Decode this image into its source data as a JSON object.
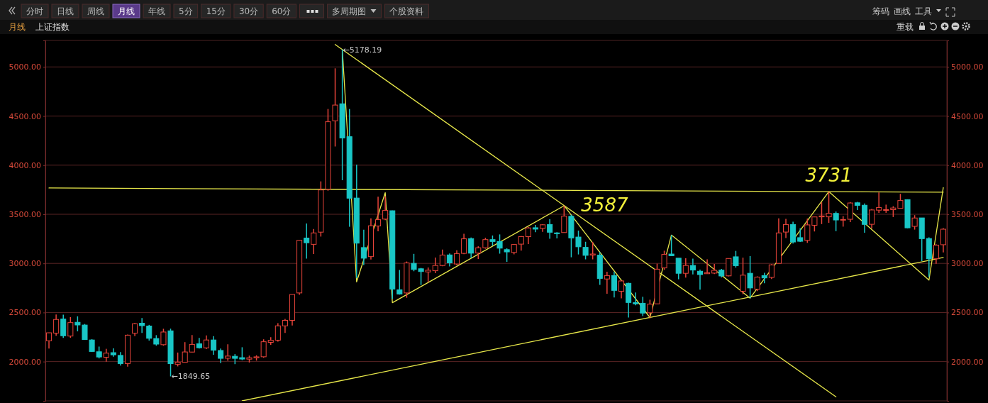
{
  "chart_data": {
    "type": "candlestick",
    "title": "上证指数",
    "subtitle": "月线",
    "annotations": [
      "分时",
      "日线",
      "周线",
      "月线",
      "年线",
      "5分",
      "15分",
      "30分",
      "60分",
      "多周期图",
      "个股资料",
      "筹码",
      "画线",
      "工具",
      "重载",
      "←5178.19",
      "←1849.65",
      "3587",
      "3731"
    ],
    "categories": [
      null,
      null,
      null,
      null,
      null,
      null,
      null,
      null,
      null,
      null,
      null,
      null,
      null,
      null,
      null,
      null,
      null,
      null,
      null,
      null,
      null,
      null,
      null,
      null,
      null,
      null,
      null,
      null,
      null,
      null,
      null,
      null,
      null,
      null,
      null,
      null,
      null,
      null,
      null,
      null,
      null,
      null,
      null,
      null,
      null,
      null,
      null,
      null,
      null,
      null,
      null,
      null,
      null,
      null,
      null,
      null,
      null,
      null,
      null,
      null,
      null,
      null,
      null,
      null,
      null,
      null,
      null,
      null,
      null,
      null,
      null,
      null,
      null,
      null,
      null,
      null,
      null,
      null,
      null,
      null,
      null,
      null,
      null,
      null,
      null,
      null,
      null,
      null,
      null,
      null,
      null,
      null,
      null,
      null,
      null,
      null,
      null,
      null,
      null,
      null,
      null,
      null,
      null,
      null,
      null,
      null,
      null,
      null,
      null,
      null,
      null,
      null,
      null,
      null,
      null,
      null,
      null,
      null,
      null,
      null,
      null,
      null,
      null,
      null,
      null,
      null
    ],
    "ohlc": [
      [
        2212,
        2296,
        2132,
        2293
      ],
      [
        2290,
        2479,
        2262,
        2429
      ],
      [
        2433,
        2478,
        2242,
        2263
      ],
      [
        2260,
        2453,
        2242,
        2397
      ],
      [
        2400,
        2461,
        2308,
        2373
      ],
      [
        2372,
        2383,
        2223,
        2225
      ],
      [
        2220,
        2228,
        2098,
        2103
      ],
      [
        2100,
        2153,
        2032,
        2047
      ],
      [
        2044,
        2130,
        1999,
        2086
      ],
      [
        2091,
        2135,
        2050,
        2069
      ],
      [
        2063,
        2097,
        1959,
        1980
      ],
      [
        1980,
        2276,
        1949,
        2269
      ],
      [
        2289,
        2393,
        2259,
        2385
      ],
      [
        2391,
        2444,
        2291,
        2366
      ],
      [
        2362,
        2374,
        2214,
        2237
      ],
      [
        2235,
        2269,
        2162,
        2178
      ],
      [
        2172,
        2334,
        2162,
        2301
      ],
      [
        2313,
        2335,
        1849.65,
        1979
      ],
      [
        1973,
        2092,
        1951,
        1994
      ],
      [
        1993,
        2198,
        1993,
        2098
      ],
      [
        2097,
        2270,
        2095,
        2175
      ],
      [
        2181,
        2242,
        2132,
        2141
      ],
      [
        2140,
        2267,
        2128,
        2220
      ],
      [
        2220,
        2260,
        2069,
        2116
      ],
      [
        2113,
        2132,
        1985,
        2033
      ],
      [
        2034,
        2177,
        2008,
        2056
      ],
      [
        2054,
        2076,
        1974,
        2033
      ],
      [
        2040,
        2146,
        2014,
        2026
      ],
      [
        2025,
        2061,
        1991,
        2039
      ],
      [
        2039,
        2064,
        2010,
        2048
      ],
      [
        2049,
        2227,
        2039,
        2202
      ],
      [
        2196,
        2248,
        2170,
        2217
      ],
      [
        2218,
        2391,
        2203,
        2364
      ],
      [
        2364,
        2434,
        2292,
        2420
      ],
      [
        2420,
        2684,
        2367,
        2683
      ],
      [
        2699,
        3239,
        2680,
        3235
      ],
      [
        3258,
        3406,
        3049,
        3210
      ],
      [
        3194,
        3350,
        3095,
        3310
      ],
      [
        3318,
        3835,
        3273,
        3748
      ],
      [
        3755,
        4572,
        3740,
        4442
      ],
      [
        4452,
        4986,
        4190,
        4612
      ],
      [
        4625,
        5178.19,
        3847,
        4277
      ],
      [
        4290,
        4572,
        3373,
        3664
      ],
      [
        3665,
        4006,
        2850,
        3206
      ],
      [
        3161,
        3342,
        2983,
        3053
      ],
      [
        3069,
        3459,
        3039,
        3383
      ],
      [
        3381,
        3678,
        3327,
        3445
      ],
      [
        3451,
        3684,
        3440,
        3539
      ],
      [
        3536,
        3538,
        2638,
        2738
      ],
      [
        2731,
        2933,
        2682,
        2688
      ],
      [
        2699,
        3019,
        2650,
        3004
      ],
      [
        3000,
        3097,
        2920,
        2938
      ],
      [
        2945,
        2954,
        2780,
        2917
      ],
      [
        2913,
        2958,
        2807,
        2930
      ],
      [
        2925,
        3059,
        2900,
        2979
      ],
      [
        2978,
        3140,
        2971,
        3085
      ],
      [
        3086,
        3101,
        2969,
        3005
      ],
      [
        2994,
        3133,
        2980,
        3100
      ],
      [
        3102,
        3301,
        3093,
        3250
      ],
      [
        3252,
        3264,
        3056,
        3104
      ],
      [
        3105,
        3174,
        3044,
        3159
      ],
      [
        3159,
        3261,
        3149,
        3242
      ],
      [
        3242,
        3284,
        3180,
        3223
      ],
      [
        3222,
        3295,
        3099,
        3155
      ],
      [
        3140,
        3154,
        3016,
        3117
      ],
      [
        3111,
        3197,
        3092,
        3192
      ],
      [
        3196,
        3277,
        3130,
        3273
      ],
      [
        3272,
        3372,
        3197,
        3361
      ],
      [
        3363,
        3391,
        3317,
        3349
      ],
      [
        3356,
        3399,
        3322,
        3393
      ],
      [
        3396,
        3450,
        3251,
        3317
      ],
      [
        3310,
        3317,
        3254,
        3307
      ],
      [
        3314,
        3587,
        3314,
        3481
      ],
      [
        3479,
        3495,
        3062,
        3259
      ],
      [
        3268,
        3334,
        3091,
        3169
      ],
      [
        3163,
        3220,
        3041,
        3082
      ],
      [
        3085,
        3219,
        3041,
        3095
      ],
      [
        3084,
        3113,
        2782,
        2847
      ],
      [
        2841,
        2915,
        2691,
        2876
      ],
      [
        2875,
        2915,
        2653,
        2725
      ],
      [
        2716,
        2827,
        2644,
        2821
      ],
      [
        2797,
        2803,
        2449,
        2602
      ],
      [
        2600,
        2703,
        2573,
        2588
      ],
      [
        2594,
        2660,
        2464,
        2494
      ],
      [
        2497,
        2630,
        2441,
        2585
      ],
      [
        2588,
        2997,
        2588,
        2941
      ],
      [
        2954,
        3129,
        2934,
        3091
      ],
      [
        3095,
        3288,
        3075,
        3078
      ],
      [
        3053,
        3053,
        2838,
        2899
      ],
      [
        2899,
        3052,
        2855,
        2979
      ],
      [
        2979,
        3049,
        2888,
        2932
      ],
      [
        2920,
        2936,
        2733,
        2886
      ],
      [
        2895,
        3042,
        2894,
        2905
      ],
      [
        2901,
        2994,
        2891,
        2929
      ],
      [
        2931,
        2943,
        2857,
        2872
      ],
      [
        2873,
        3052,
        2868,
        3050
      ],
      [
        3067,
        3127,
        2957,
        2977
      ],
      [
        2716,
        3058,
        2686,
        2880
      ],
      [
        2899,
        3074,
        2646,
        2750
      ],
      [
        2737,
        2868,
        2718,
        2860
      ],
      [
        2876,
        2904,
        2797,
        2852
      ],
      [
        2857,
        2992,
        2840,
        2985
      ],
      [
        3000,
        3458,
        3000,
        3310
      ],
      [
        3319,
        3453,
        3258,
        3396
      ],
      [
        3396,
        3425,
        3202,
        3218
      ],
      [
        3262,
        3358,
        3218,
        3225
      ],
      [
        3234,
        3456,
        3209,
        3392
      ],
      [
        3388,
        3474,
        3325,
        3473
      ],
      [
        3474,
        3622,
        3400,
        3483
      ],
      [
        3474,
        3731,
        3413,
        3509
      ],
      [
        3509,
        3528,
        3328,
        3442
      ],
      [
        3442,
        3481,
        3374,
        3447
      ],
      [
        3449,
        3625,
        3420,
        3615
      ],
      [
        3617,
        3626,
        3543,
        3591
      ],
      [
        3592,
        3611,
        3312,
        3397
      ],
      [
        3398,
        3555,
        3355,
        3544
      ],
      [
        3542,
        3723,
        3514,
        3568
      ],
      [
        3544,
        3598,
        3515,
        3547
      ],
      [
        3547,
        3582,
        3472,
        3564
      ],
      [
        3561,
        3708,
        3561,
        3640
      ],
      [
        3649,
        3652,
        3357,
        3362
      ],
      [
        3377,
        3491,
        3344,
        3462
      ],
      [
        3463,
        3464,
        3023,
        3252
      ],
      [
        3253,
        3265,
        2863,
        3047
      ],
      [
        3047,
        3195,
        2997,
        3186
      ],
      [
        3190,
        3360,
        3112,
        3348
      ]
    ],
    "series": [
      {
        "type": "line",
        "color": "#e8e84a",
        "values": [
          3768,
          null,
          null,
          null,
          null,
          null,
          null,
          null,
          null,
          null,
          null,
          null,
          null,
          null,
          null,
          null,
          null,
          null,
          null,
          null,
          null,
          null,
          null,
          null,
          null,
          null,
          null,
          null,
          null,
          null,
          null,
          null,
          null,
          null,
          null,
          null,
          null,
          null,
          null,
          null,
          null,
          null,
          null,
          null,
          null,
          null,
          null,
          null,
          null,
          null,
          null,
          null,
          null,
          null,
          null,
          null,
          null,
          null,
          null,
          null,
          null,
          null,
          null,
          null,
          null,
          null,
          null,
          null,
          null,
          null,
          null,
          null,
          null,
          null,
          null,
          null,
          null,
          null,
          null,
          null,
          null,
          null,
          null,
          null,
          null,
          null,
          null,
          null,
          null,
          null,
          null,
          null,
          null,
          null,
          null,
          null,
          null,
          null,
          null,
          null,
          null,
          null,
          null,
          null,
          null,
          null,
          null,
          null,
          null,
          null,
          null,
          null,
          null,
          null,
          null,
          null,
          null,
          null,
          null,
          null,
          null,
          null,
          null,
          null,
          null,
          3725
        ]
      },
      {
        "type": "line",
        "color": "#e8e84a",
        "values": [
          null,
          null,
          null,
          null,
          null,
          null,
          null,
          null,
          null,
          null,
          null,
          null,
          null,
          null,
          null,
          null,
          null,
          null,
          null,
          null,
          null,
          null,
          null,
          null,
          null,
          null,
          null,
          1600,
          null,
          null,
          null,
          null,
          null,
          null,
          null,
          null,
          null,
          null,
          null,
          null,
          null,
          null,
          null,
          null,
          null,
          null,
          null,
          null,
          null,
          null,
          null,
          null,
          null,
          null,
          null,
          null,
          null,
          null,
          null,
          null,
          null,
          null,
          null,
          null,
          null,
          null,
          null,
          null,
          null,
          null,
          null,
          null,
          null,
          null,
          null,
          null,
          null,
          null,
          null,
          null,
          null,
          null,
          null,
          null,
          null,
          null,
          null,
          null,
          null,
          null,
          null,
          null,
          null,
          null,
          null,
          null,
          null,
          null,
          null,
          null,
          null,
          null,
          null,
          null,
          null,
          null,
          null,
          null,
          null,
          null,
          null,
          null,
          null,
          null,
          null,
          null,
          null,
          null,
          null,
          null,
          null,
          null,
          null,
          null,
          null,
          3060
        ]
      },
      {
        "type": "line",
        "color": "#e8e84a",
        "values": [
          null,
          null,
          null,
          null,
          null,
          null,
          null,
          null,
          null,
          null,
          null,
          null,
          null,
          null,
          null,
          null,
          null,
          null,
          null,
          null,
          null,
          null,
          null,
          null,
          null,
          null,
          null,
          null,
          null,
          null,
          null,
          null,
          null,
          null,
          null,
          null,
          null,
          null,
          null,
          null,
          5229,
          null,
          null,
          null,
          null,
          null,
          null,
          null,
          null,
          null,
          null,
          null,
          null,
          null,
          null,
          null,
          null,
          null,
          null,
          null,
          null,
          null,
          null,
          null,
          null,
          null,
          null,
          null,
          null,
          null,
          null,
          null,
          null,
          null,
          null,
          null,
          null,
          null,
          null,
          null,
          null,
          null,
          null,
          null,
          null,
          null,
          null,
          null,
          null,
          null,
          null,
          null,
          null,
          null,
          null,
          null,
          null,
          null,
          null,
          null,
          null,
          null,
          null,
          null,
          null,
          null,
          null,
          null,
          null,
          null,
          1641,
          null,
          null,
          null,
          null,
          null,
          null,
          null,
          null,
          null,
          null,
          null,
          null,
          null,
          null,
          null
        ]
      },
      {
        "type": "line",
        "color": "#e8e84a",
        "values": [
          null,
          null,
          null,
          null,
          null,
          null,
          null,
          null,
          null,
          null,
          null,
          null,
          null,
          null,
          null,
          null,
          null,
          null,
          null,
          null,
          null,
          null,
          null,
          null,
          null,
          null,
          null,
          null,
          null,
          null,
          null,
          null,
          null,
          null,
          null,
          null,
          null,
          null,
          null,
          null,
          null,
          5178,
          null,
          2812,
          null,
          null,
          null,
          3720,
          2600,
          null,
          null,
          null,
          null,
          null,
          null,
          null,
          null,
          null,
          null,
          null,
          null,
          null,
          null,
          null,
          null,
          null,
          null,
          null,
          null,
          null,
          null,
          null,
          3587,
          null,
          null,
          null,
          null,
          null,
          null,
          null,
          null,
          null,
          null,
          null,
          2449,
          null,
          null,
          3288,
          null,
          null,
          null,
          null,
          null,
          null,
          null,
          null,
          null,
          null,
          2646,
          null,
          null,
          null,
          null,
          null,
          null,
          null,
          null,
          null,
          null,
          3731,
          null,
          null,
          null,
          null,
          null,
          null,
          null,
          null,
          null,
          null,
          null,
          null,
          null,
          2830,
          null,
          3772
        ]
      }
    ],
    "ylim": [
      1600,
      5270
    ],
    "yticks": [
      {
        "value": 2000,
        "label": "2000.00"
      },
      {
        "value": 2500,
        "label": "2500.00"
      },
      {
        "value": 3000,
        "label": "3000.00"
      },
      {
        "value": 3500,
        "label": "3500.00"
      },
      {
        "value": 4000,
        "label": "4000.00"
      },
      {
        "value": 4500,
        "label": "4500.00"
      },
      {
        "value": 5000,
        "label": "5000.00"
      }
    ],
    "y2lim": [
      1600,
      5270
    ],
    "y2ticks": [
      {
        "value": 2000,
        "label": "2000.00"
      },
      {
        "value": 2500,
        "label": "2500.00"
      },
      {
        "value": 3000,
        "label": "3000.00"
      },
      {
        "value": 3500,
        "label": "3500.00"
      },
      {
        "value": 4000,
        "label": "4000.00"
      },
      {
        "value": 4500,
        "label": "4500.00"
      },
      {
        "value": 5000,
        "label": "5000.00"
      }
    ],
    "grid": "y",
    "tick_labels": "y"
  }
}
